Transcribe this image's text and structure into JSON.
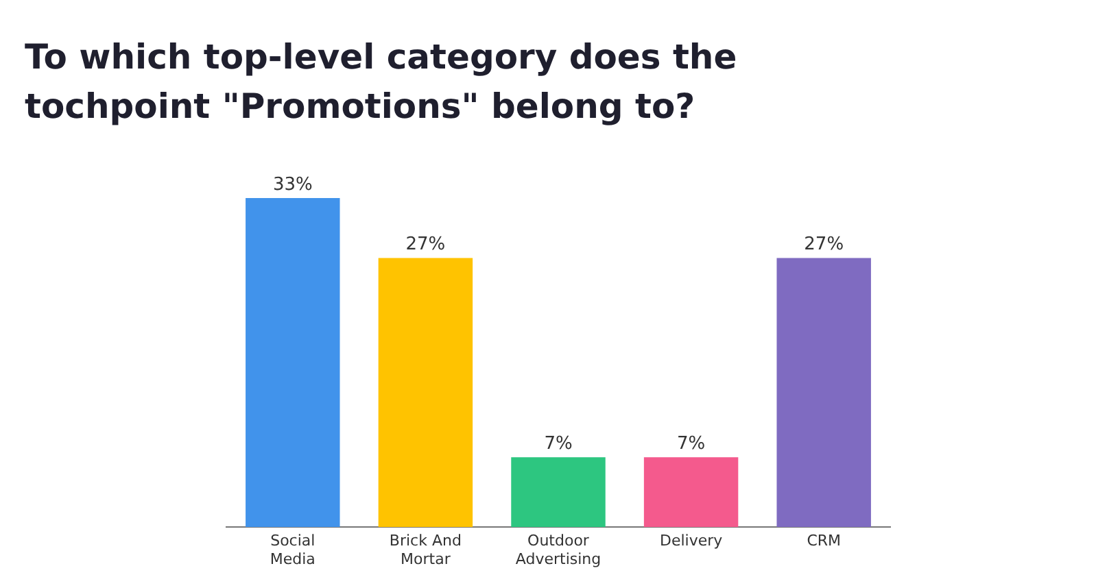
{
  "chart_data": {
    "type": "bar",
    "title": "To which top-level category does the tochpoint \"Promotions\" belong to?",
    "categories": [
      "Social Media",
      "Brick And Mortar",
      "Outdoor Advertising",
      "Delivery",
      "CRM"
    ],
    "values": [
      33,
      27,
      7,
      7,
      27
    ],
    "colors": [
      "#4193eb",
      "#ffc300",
      "#2dc680",
      "#f45a8d",
      "#7f6bc1"
    ],
    "data_labels": true,
    "value_labels": [
      "33%",
      "27%",
      "7%",
      "7%",
      "27%"
    ],
    "grid": false,
    "legend": false,
    "tick_labels": "x"
  }
}
